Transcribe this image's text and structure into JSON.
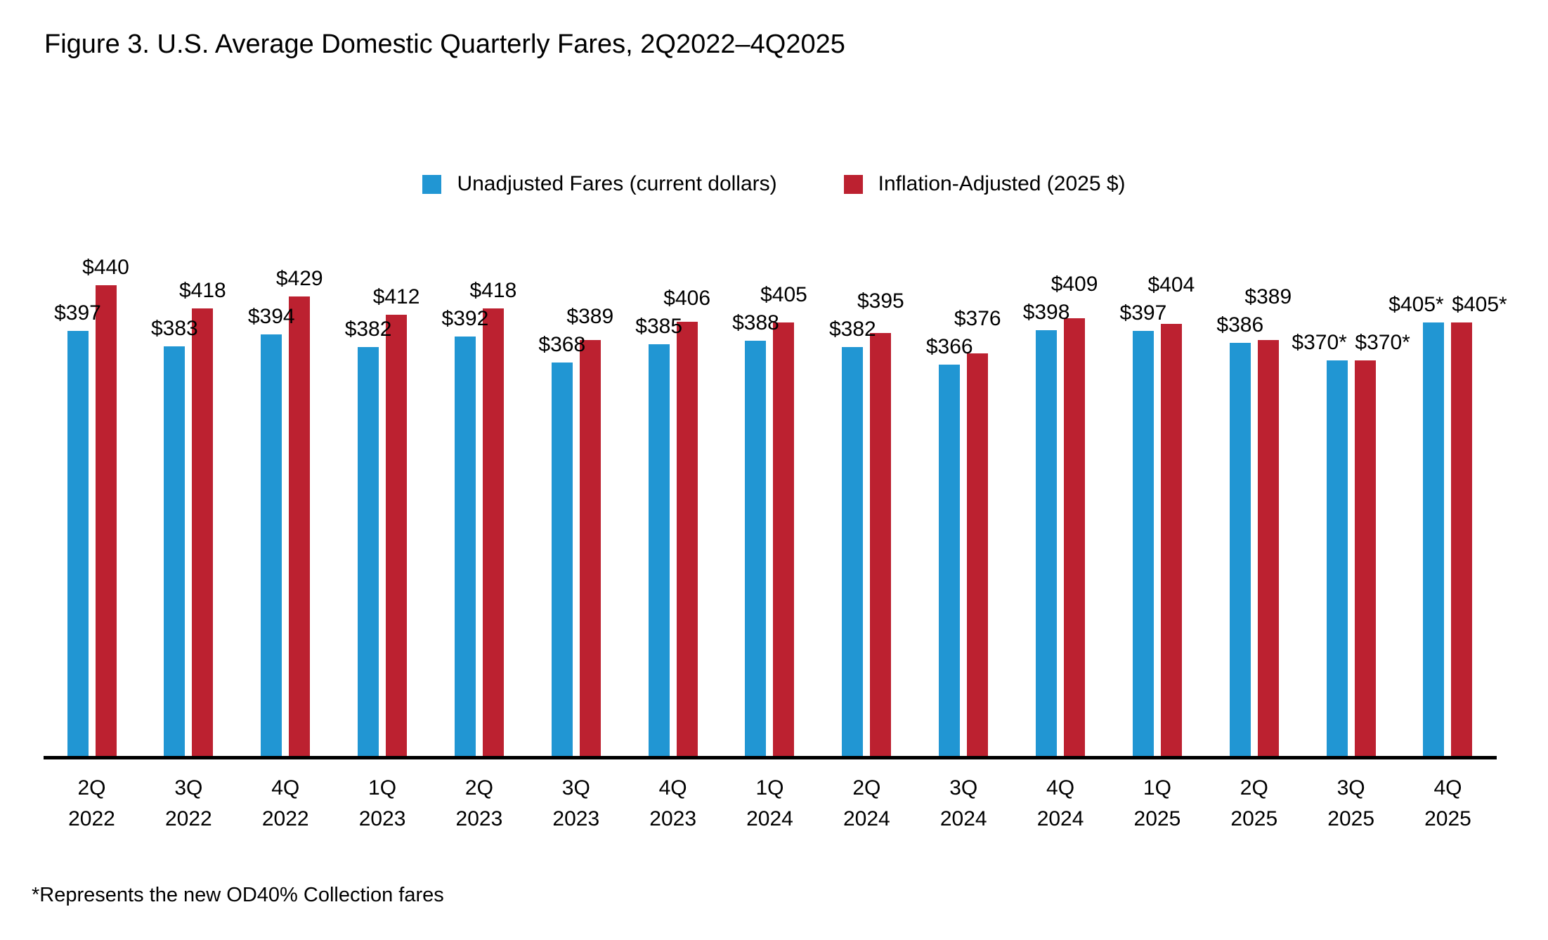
{
  "title": "Figure 3. U.S. Average Domestic Quarterly Fares, 2Q2022–4Q2025",
  "footnote": "*Represents the new OD40% Collection fares",
  "legend": {
    "items": [
      {
        "label": "Unadjusted Fares (current dollars)",
        "color": "#2196D3"
      },
      {
        "label": "Inflation-Adjusted (2025 $)",
        "color": "#BC2130"
      }
    ]
  },
  "chart_data": {
    "type": "bar",
    "title": "Figure 3. U.S. Average Domestic Quarterly Fares, 2Q2022–4Q2025",
    "categories": [
      {
        "quarter": "2Q",
        "year": "2022"
      },
      {
        "quarter": "3Q",
        "year": "2022"
      },
      {
        "quarter": "4Q",
        "year": "2022"
      },
      {
        "quarter": "1Q",
        "year": "2023"
      },
      {
        "quarter": "2Q",
        "year": "2023"
      },
      {
        "quarter": "3Q",
        "year": "2023"
      },
      {
        "quarter": "4Q",
        "year": "2023"
      },
      {
        "quarter": "1Q",
        "year": "2024"
      },
      {
        "quarter": "2Q",
        "year": "2024"
      },
      {
        "quarter": "3Q",
        "year": "2024"
      },
      {
        "quarter": "4Q",
        "year": "2024"
      },
      {
        "quarter": "1Q",
        "year": "2025"
      },
      {
        "quarter": "2Q",
        "year": "2025"
      },
      {
        "quarter": "3Q",
        "year": "2025"
      },
      {
        "quarter": "4Q",
        "year": "2025"
      }
    ],
    "series": [
      {
        "name": "Unadjusted Fares (current dollars)",
        "key": "unadjusted",
        "color": "#2196D3",
        "values": [
          397,
          383,
          394,
          382,
          392,
          368,
          385,
          388,
          382,
          366,
          398,
          397,
          386,
          370,
          405
        ],
        "labels": [
          "$397",
          "$383",
          "$394",
          "$382",
          "$392",
          "$368",
          "$385",
          "$388",
          "$382",
          "$366",
          "$398",
          "$397",
          "$386",
          "$370*",
          "$405*"
        ]
      },
      {
        "name": "Inflation-Adjusted (2025 $)",
        "key": "inflation-adjusted",
        "color": "#BC2130",
        "values": [
          440,
          418,
          429,
          412,
          418,
          389,
          406,
          405,
          395,
          376,
          409,
          404,
          389,
          370,
          405
        ],
        "labels": [
          "$440",
          "$418",
          "$429",
          "$412",
          "$418",
          "$389",
          "$406",
          "$405",
          "$395",
          "$376",
          "$409",
          "$404",
          "$389",
          "$370*",
          "$405*"
        ]
      }
    ],
    "ylim": [
      0,
      460
    ],
    "xlabel": "",
    "ylabel": "",
    "grid": false,
    "y_axis_visible": false,
    "legend_position": "top-center",
    "value_label_prefix": "$",
    "footnote": "*Represents the new OD40% Collection fares"
  }
}
